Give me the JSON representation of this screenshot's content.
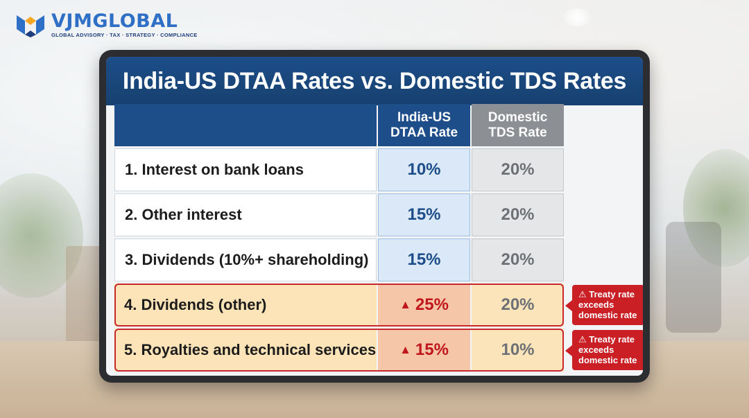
{
  "brand": {
    "name_part1": "VJM",
    "name_part2": "GLOBAL",
    "tagline": "GLOBAL ADVISORY · TAX · STRATEGY · COMPLIANCE",
    "colors": {
      "primary": "#2f6fc6",
      "accent": "#f5a623",
      "navy": "#1f3d7a"
    }
  },
  "slide": {
    "title": "India-US DTAA Rates vs. Domestic TDS Rates",
    "columns": {
      "dtaa": "India-US DTAA Rate",
      "tds": "Domestic TDS Rate"
    },
    "rows": [
      {
        "label": "1. Interest on bank loans",
        "dtaa": "10%",
        "tds": "20%"
      },
      {
        "label": "2. Other interest",
        "dtaa": "15%",
        "tds": "20%"
      },
      {
        "label": "3. Dividends (10%+ shareholding)",
        "dtaa": "15%",
        "tds": "20%"
      },
      {
        "label": "4. Dividends (other)",
        "dtaa": "25%",
        "tds": "20%",
        "warning": "⚠ Treaty rate exceeds domestic rate",
        "warn_icon": "up-triangle-icon"
      },
      {
        "label": "5. Royalties and technical services",
        "dtaa": "15%",
        "tds": "10%",
        "warning": "⚠ Treaty rate exceeds domestic rate",
        "warn_icon": "up-triangle-icon"
      }
    ],
    "colors": {
      "header_navy": "#1d4e89",
      "header_gray": "#8c8f93",
      "warning_red": "#c91f25",
      "warning_row": "#fde4b8"
    }
  }
}
